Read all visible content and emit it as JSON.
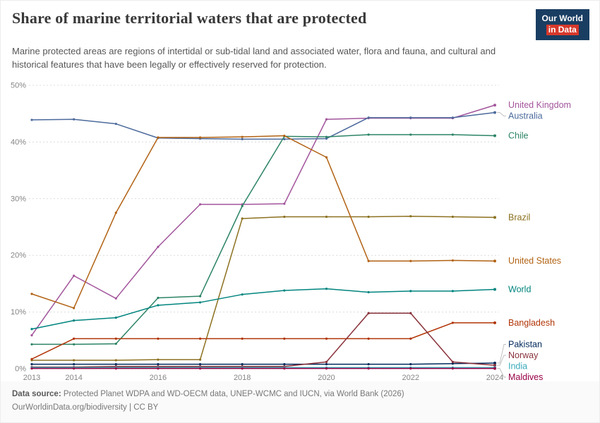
{
  "header": {
    "title": "Share of marine territorial waters that are protected",
    "subtitle": "Marine protected areas are regions of intertidal or sub-tidal land and associated water, flora and fauna, and cultural and historical features that have been legally or effectively reserved for protection."
  },
  "logo": {
    "line1": "Our World",
    "line2": "in Data"
  },
  "footer": {
    "source_label": "Data source:",
    "source_text": "Protected Planet WDPA and WD-OECM data, UNEP-WCMC and IUCN, via World Bank (2026)",
    "link": "OurWorldinData.org/biodiversity",
    "separator": "|",
    "license": "CC BY"
  },
  "chart_data": {
    "type": "line",
    "title": "Share of marine territorial waters that are protected",
    "x": [
      2013,
      2014,
      2015,
      2016,
      2017,
      2018,
      2019,
      2020,
      2021,
      2022,
      2023,
      2024
    ],
    "x_ticks": [
      2013,
      2014,
      2016,
      2018,
      2020,
      2022,
      2024
    ],
    "y_ticks": [
      0,
      10,
      20,
      30,
      40,
      50
    ],
    "y_tick_suffix": "%",
    "ylim": [
      0,
      50
    ],
    "grid": "horizontal-dashed",
    "legend_position": "right-edge-labels",
    "series": [
      {
        "name": "United Kingdom",
        "color": "#A2559C",
        "values": [
          5.9,
          16.4,
          12.4,
          21.5,
          29.0,
          29.0,
          29.1,
          44.0,
          44.2,
          44.2,
          44.2,
          46.5
        ]
      },
      {
        "name": "Australia",
        "color": "#4C6A9C",
        "values": [
          43.9,
          44.0,
          43.2,
          40.7,
          40.6,
          40.5,
          40.5,
          40.6,
          44.3,
          44.3,
          44.3,
          45.2
        ]
      },
      {
        "name": "Chile",
        "color": "#2C8465",
        "values": [
          4.3,
          4.3,
          4.4,
          12.5,
          12.8,
          28.7,
          41.0,
          40.9,
          41.3,
          41.3,
          41.3,
          41.1
        ]
      },
      {
        "name": "Brazil",
        "color": "#8C7120",
        "values": [
          1.5,
          1.5,
          1.5,
          1.6,
          1.6,
          26.5,
          26.8,
          26.8,
          26.8,
          26.9,
          26.8,
          26.7
        ]
      },
      {
        "name": "United States",
        "color": "#B16214",
        "values": [
          13.2,
          10.7,
          27.5,
          40.8,
          40.8,
          40.9,
          41.1,
          37.3,
          19.0,
          19.0,
          19.1,
          19.0
        ]
      },
      {
        "name": "World",
        "color": "#00847E",
        "values": [
          7.0,
          8.5,
          9.0,
          11.2,
          11.7,
          13.1,
          13.8,
          14.1,
          13.5,
          13.7,
          13.7,
          14.0
        ]
      },
      {
        "name": "Bangladesh",
        "color": "#B13507",
        "values": [
          1.7,
          5.3,
          5.3,
          5.3,
          5.3,
          5.3,
          5.3,
          5.3,
          5.3,
          5.3,
          8.1,
          8.1
        ]
      },
      {
        "name": "Pakistan",
        "color": "#00295B",
        "values": [
          0.8,
          0.8,
          0.8,
          0.8,
          0.8,
          0.8,
          0.8,
          0.8,
          0.8,
          0.8,
          0.9,
          1.0
        ]
      },
      {
        "name": "Norway",
        "color": "#883039",
        "values": [
          0.3,
          0.3,
          0.4,
          0.4,
          0.4,
          0.4,
          0.4,
          1.2,
          9.8,
          9.8,
          1.2,
          0.6
        ]
      },
      {
        "name": "India",
        "color": "#38AABA",
        "values": [
          0.2,
          0.2,
          0.2,
          0.2,
          0.2,
          0.2,
          0.2,
          0.2,
          0.2,
          0.2,
          0.2,
          0.2
        ]
      },
      {
        "name": "Maldives",
        "color": "#970046",
        "values": [
          0.05,
          0.05,
          0.05,
          0.05,
          0.05,
          0.05,
          0.05,
          0.05,
          0.05,
          0.05,
          0.05,
          0.05
        ]
      }
    ]
  }
}
